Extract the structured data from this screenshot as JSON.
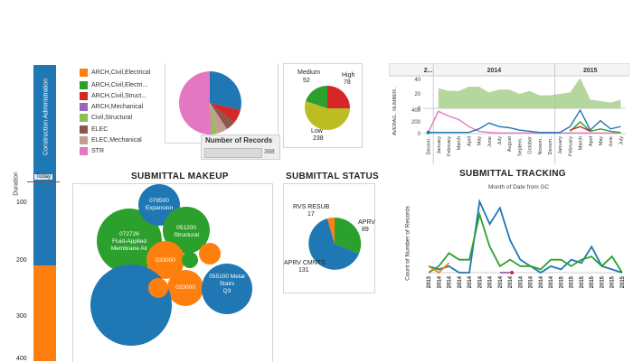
{
  "duration_panel": {
    "axis_label": "Duration",
    "ticks": [
      "100",
      "200",
      "300",
      "400"
    ],
    "bar_label": "Construction Administration",
    "today_label": "Today",
    "colors": {
      "bar_primary": "#1f77b4",
      "bar_secondary": "#ff7f0e",
      "today_line": "#c0392b"
    }
  },
  "legend": {
    "items": [
      {
        "label": "ARCH,Civil,Electrical",
        "color": "#ff7f0e"
      },
      {
        "label": "ARCH,Civil,Electri...",
        "color": "#2ca02c"
      },
      {
        "label": "ARCH,Civil,Struct...",
        "color": "#d62728"
      },
      {
        "label": "ARCH,Mechanical",
        "color": "#9467bd"
      },
      {
        "label": "Civil,Structural",
        "color": "#8cc152"
      },
      {
        "label": "ELEC",
        "color": "#8c564b"
      },
      {
        "label": "ELEC,Mechanical",
        "color": "#c49c94"
      },
      {
        "label": "STR",
        "color": "#e377c2"
      }
    ]
  },
  "records": {
    "title": "Number of Records",
    "value": "388"
  },
  "priority_pie": {
    "chart_data": {
      "type": "pie",
      "slices": [
        {
          "label": "Medium",
          "value": 52,
          "color": "#2ca02c"
        },
        {
          "label": "High",
          "value": 78,
          "color": "#d62728"
        },
        {
          "label": "Low",
          "value": 238,
          "color": "#bcbd22"
        }
      ]
    },
    "labels": {
      "medium": "Medium",
      "medium_value": "52",
      "high": "High",
      "high_value": "78",
      "low": "Low",
      "low_value": "238"
    }
  },
  "timeline": {
    "year_labels": [
      "2...",
      "2014",
      "2015"
    ],
    "axis_label": "AVERAG.. NUMBER..",
    "top_ticks": [
      "40",
      "20",
      "0"
    ],
    "bottom_ticks": [
      "400",
      "200",
      "0"
    ],
    "months": [
      "Decem..",
      "January",
      "February",
      "March",
      "April",
      "May",
      "June",
      "July",
      "August",
      "Septem..",
      "October",
      "Novem..",
      "Decem..",
      "January",
      "February",
      "March",
      "April",
      "May",
      "June",
      "July"
    ],
    "chart_data": {
      "type": "area",
      "x": [
        "Dec 2013",
        "Jan 2014",
        "Feb 2014",
        "Mar 2014",
        "Apr 2014",
        "May 2014",
        "Jun 2014",
        "Jul 2014",
        "Aug 2014",
        "Sep 2014",
        "Oct 2014",
        "Nov 2014",
        "Dec 2014",
        "Jan 2015",
        "Feb 2015",
        "Mar 2015",
        "Apr 2015",
        "May 2015",
        "Jun 2015",
        "Jul 2015"
      ],
      "series": [
        {
          "name": "",
          "values": [
            null,
            28,
            24,
            24,
            30,
            30,
            22,
            26,
            26,
            20,
            24,
            18,
            18,
            20,
            22,
            42,
            12,
            10,
            8,
            12
          ],
          "color": "#a8d08d"
        }
      ],
      "ylim": [
        0,
        40
      ]
    },
    "line_chart_data": {
      "type": "line",
      "x": [
        "Dec 2013",
        "Jan 2014",
        "Feb 2014",
        "Mar 2014",
        "Apr 2014",
        "May 2014",
        "Jun 2014",
        "Jul 2014",
        "Aug 2014",
        "Sep 2014",
        "Oct 2014",
        "Nov 2014",
        "Dec 2014",
        "Jan 2015",
        "Feb 2015",
        "Mar 2015",
        "Apr 2015",
        "May 2015",
        "Jun 2015",
        "Jul 2015"
      ],
      "series": [
        {
          "name": "",
          "values": [
            20,
            380,
            300,
            240,
            120,
            40,
            20,
            10,
            10,
            10,
            10,
            10,
            10,
            10,
            10,
            10,
            10,
            10,
            10,
            10
          ],
          "color": "#e377c2"
        },
        {
          "name": "",
          "values": [
            20,
            20,
            20,
            20,
            20,
            80,
            180,
            120,
            100,
            60,
            40,
            20,
            20,
            20,
            120,
            400,
            60,
            220,
            80,
            120
          ],
          "color": "#1f77b4"
        },
        {
          "name": "",
          "values": [
            null,
            null,
            null,
            null,
            null,
            null,
            null,
            null,
            null,
            null,
            null,
            null,
            null,
            null,
            40,
            200,
            40,
            80,
            40,
            20
          ],
          "color": "#2ca02c"
        },
        {
          "name": "",
          "values": [
            null,
            null,
            null,
            null,
            null,
            null,
            null,
            null,
            null,
            null,
            null,
            null,
            null,
            null,
            60,
            120,
            40,
            null,
            null,
            null
          ],
          "color": "#d62728"
        }
      ],
      "ylim": [
        0,
        400
      ]
    }
  },
  "makeup": {
    "title": "SUBMITTAL MAKEUP",
    "bubbles": [
      {
        "name": "bubble-079500",
        "line1": "079500",
        "line2": "Expansion",
        "line3": "",
        "color": "#1f77b4"
      },
      {
        "name": "bubble-051200",
        "line1": "051200",
        "line2": "Structural",
        "line3": "",
        "color": "#1f77b4"
      },
      {
        "name": "bubble-072726",
        "line1": "072726",
        "line2": "Fluid-Applied",
        "line3": "Membrane Air",
        "color": "#2ca02c"
      },
      {
        "name": "bubble-033000-a",
        "line1": "033000",
        "line2": "",
        "line3": "",
        "color": "#ff7f0e"
      },
      {
        "name": "bubble-033000-b",
        "line1": "033000",
        "line2": "",
        "line3": "",
        "color": "#ff7f0e"
      },
      {
        "name": "bubble-055100",
        "line1": "055100 Metal",
        "line2": "Stairs",
        "line3": "Q3",
        "color": "#1f77b4"
      }
    ]
  },
  "status": {
    "title": "SUBMITTAL STATUS",
    "chart_data": {
      "type": "pie",
      "slices": [
        {
          "label": "APRV",
          "value": 89,
          "color": "#2ca02c"
        },
        {
          "label": "APRV CMNTS",
          "value": 131,
          "color": "#1f77b4"
        },
        {
          "label": "RVS RESUB",
          "value": 17,
          "color": "#ff7f0e"
        }
      ]
    },
    "labels": {
      "rvs": "RVS RESUB",
      "rvs_value": "17",
      "aprv": "APRV",
      "aprv_value": "89",
      "cmnts": "APRV CMNTS",
      "cmnts_value": "131"
    }
  },
  "tracking": {
    "title": "SUBMITTAL TRACKING",
    "subtitle": "Month of Date from  GC",
    "ylabel": "Count of Number of Records",
    "xticks": [
      "2013",
      "2014",
      "2014",
      "2014",
      "2014",
      "2014",
      "2014",
      "2014",
      "2014",
      "2014",
      "2014",
      "2014",
      "2014",
      "2015",
      "2015",
      "2015",
      "2015",
      "2015",
      "2015",
      "2015"
    ],
    "chart_data": {
      "type": "line",
      "x": [
        "2013",
        "2014",
        "2014",
        "2014",
        "2014",
        "2014",
        "2014",
        "2014",
        "2014",
        "2014",
        "2014",
        "2014",
        "2014",
        "2015",
        "2015",
        "2015",
        "2015",
        "2015",
        "2015",
        "2015"
      ],
      "series": [
        {
          "name": "",
          "values": [
            2,
            1,
            2,
            0,
            0,
            22,
            15,
            20,
            10,
            4,
            2,
            0,
            2,
            1,
            4,
            3,
            8,
            2,
            1,
            0
          ],
          "color": "#1f77b4"
        },
        {
          "name": "",
          "values": [
            0,
            2,
            6,
            4,
            4,
            18,
            8,
            2,
            4,
            2,
            2,
            1,
            4,
            4,
            2,
            4,
            5,
            2,
            5,
            0
          ],
          "color": "#2ca02c"
        },
        {
          "name": "",
          "values": [
            2,
            0,
            3,
            null,
            0,
            null,
            null,
            null,
            null,
            null,
            null,
            null,
            null,
            null,
            null,
            null,
            null,
            null,
            null,
            null
          ],
          "color": "#ff7f0e"
        },
        {
          "name": "",
          "values": [
            null,
            null,
            null,
            null,
            null,
            null,
            null,
            0,
            0,
            null,
            null,
            null,
            null,
            null,
            null,
            null,
            null,
            null,
            null,
            null
          ],
          "color": "#9467bd"
        }
      ],
      "ylim": [
        0,
        24
      ]
    }
  }
}
